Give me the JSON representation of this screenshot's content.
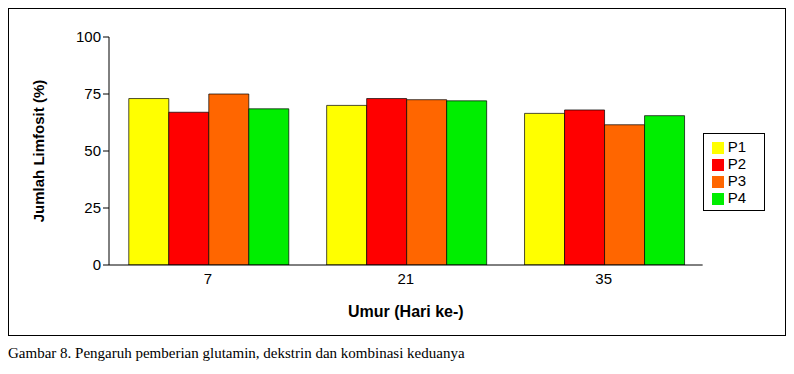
{
  "chart_data": {
    "type": "bar",
    "caption": "Gambar 8. Pengaruh pemberian glutamin, dekstrin dan kombinasi keduanya",
    "x_label": "Umur (Hari ke-)",
    "y_label": "Jumlah Limfosit (%)",
    "categories": [
      "7",
      "21",
      "35"
    ],
    "series": [
      {
        "name": "P1",
        "color": "#ffff00",
        "values": [
          73,
          70,
          66.5
        ]
      },
      {
        "name": "P2",
        "color": "#ff0000",
        "values": [
          67,
          73,
          68
        ]
      },
      {
        "name": "P3",
        "color": "#ff6600",
        "values": [
          75,
          72.5,
          61.5
        ]
      },
      {
        "name": "P4",
        "color": "#00ee00",
        "values": [
          68.5,
          72,
          65.5
        ]
      }
    ],
    "ylim": [
      0,
      100
    ],
    "yticks": [
      0,
      25,
      50,
      75,
      100
    ],
    "grid": false,
    "legend": "right"
  }
}
